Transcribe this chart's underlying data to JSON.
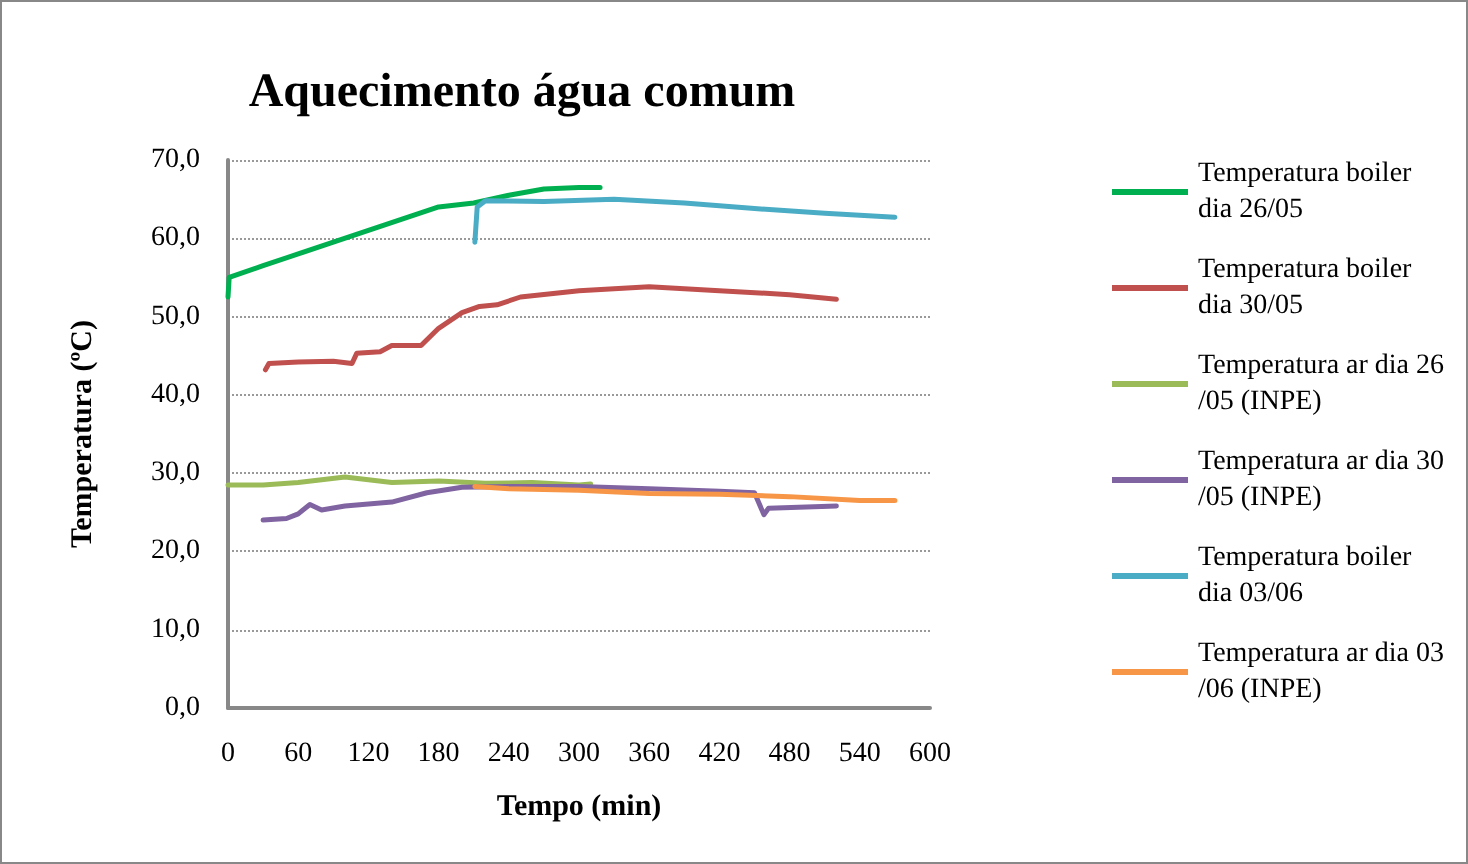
{
  "chart_data": {
    "type": "line",
    "title": "Aquecimento água comum",
    "xlabel": "Tempo (min)",
    "ylabel": "Temperatura (ºC)",
    "xlim": [
      0,
      600
    ],
    "xticks": [
      0,
      60,
      120,
      180,
      240,
      300,
      360,
      420,
      480,
      540,
      600
    ],
    "ylim": [
      0,
      70
    ],
    "yticks": [
      {
        "value": 0,
        "label": "0,0"
      },
      {
        "value": 10,
        "label": "10,0"
      },
      {
        "value": 20,
        "label": "20,0"
      },
      {
        "value": 30,
        "label": "30,0"
      },
      {
        "value": 40,
        "label": "40,0"
      },
      {
        "value": 50,
        "label": "50,0"
      },
      {
        "value": 60,
        "label": "60,0"
      },
      {
        "value": 70,
        "label": "70,0"
      }
    ],
    "grid": "y",
    "legend": "right",
    "marker": "none",
    "line_style": "solid",
    "series": [
      {
        "name": "Temperatura boiler dia 26/05",
        "color": "#00b050",
        "x": [
          0,
          1,
          30,
          60,
          90,
          120,
          150,
          180,
          210,
          240,
          270,
          300,
          318
        ],
        "values": [
          52.5,
          55,
          56.5,
          58,
          59.5,
          61,
          62.5,
          64,
          64.5,
          65.5,
          66.3,
          66.5,
          66.5
        ]
      },
      {
        "name": "Temperatura boiler dia 30/05",
        "color": "#c0504d",
        "x": [
          32,
          35,
          60,
          90,
          106,
          110,
          130,
          140,
          165,
          180,
          200,
          215,
          230,
          250,
          300,
          360,
          420,
          480,
          520
        ],
        "values": [
          43.2,
          44,
          44.2,
          44.3,
          44,
          45.3,
          45.5,
          46.3,
          46.3,
          48.5,
          50.5,
          51.3,
          51.5,
          52.5,
          53.3,
          53.8,
          53.3,
          52.8,
          52.2
        ]
      },
      {
        "name": "Temperatura ar dia 26/05 (INPE)",
        "color": "#9bbb59",
        "x": [
          0,
          30,
          60,
          100,
          140,
          180,
          220,
          260,
          300,
          310
        ],
        "values": [
          28.5,
          28.5,
          28.8,
          29.5,
          28.8,
          29,
          28.7,
          28.8,
          28.5,
          28.6
        ]
      },
      {
        "name": "Temperatura ar dia 30/05 (INPE)",
        "color": "#8064a2",
        "x": [
          30,
          50,
          60,
          70,
          80,
          100,
          140,
          170,
          200,
          240,
          300,
          360,
          420,
          450,
          458,
          462,
          520
        ],
        "values": [
          24,
          24.2,
          24.8,
          26,
          25.3,
          25.8,
          26.3,
          27.5,
          28.2,
          28.3,
          28.3,
          28,
          27.7,
          27.5,
          24.7,
          25.5,
          25.8
        ]
      },
      {
        "name": "Temperatura boiler dia 03/06",
        "color": "#4bacc6",
        "x": [
          211,
          213,
          220,
          270,
          330,
          390,
          450,
          510,
          570
        ],
        "values": [
          59.5,
          64,
          64.8,
          64.7,
          65,
          64.5,
          63.8,
          63.2,
          62.7
        ]
      },
      {
        "name": "Temperatura ar dia 03/06 (INPE)",
        "color": "#f79646",
        "x": [
          211,
          240,
          300,
          360,
          420,
          480,
          540,
          570
        ],
        "values": [
          28.3,
          28,
          27.8,
          27.4,
          27.3,
          27,
          26.5,
          26.5
        ]
      }
    ]
  }
}
